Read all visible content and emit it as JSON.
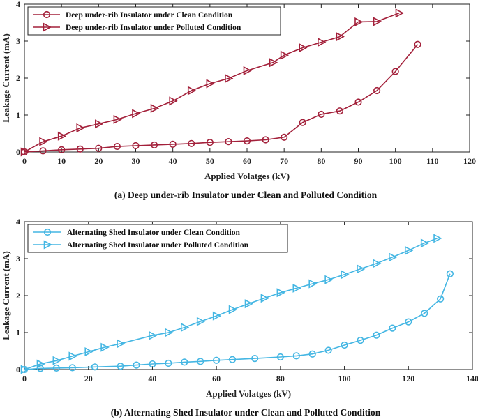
{
  "chart_data": [
    {
      "type": "line",
      "caption": "(a) Deep under-rib Insulator under Clean and Polluted Condition",
      "xlabel": "Applied Volatges (kV)",
      "ylabel": "Leakage Current (mA)",
      "xlim": [
        0,
        120
      ],
      "ylim": [
        0,
        4
      ],
      "xticks": [
        "0",
        "10",
        "20",
        "30",
        "40",
        "50",
        "60",
        "70",
        "80",
        "90",
        "100",
        "110",
        "120"
      ],
      "yticks": [
        "0",
        "1",
        "2",
        "3",
        "4"
      ],
      "color": "#a3203a",
      "legend_position": "top-left",
      "series": [
        {
          "name": "Deep under-rib Insulator under Clean Condition",
          "marker": "circle",
          "x": [
            0,
            5,
            10,
            15,
            20,
            25,
            30,
            35,
            40,
            45,
            50,
            55,
            60,
            65,
            70,
            75,
            80,
            85,
            90,
            95,
            100,
            106
          ],
          "y": [
            0,
            0.03,
            0.06,
            0.08,
            0.1,
            0.15,
            0.17,
            0.19,
            0.21,
            0.23,
            0.26,
            0.28,
            0.3,
            0.33,
            0.4,
            0.8,
            1.02,
            1.11,
            1.35,
            1.66,
            2.18,
            2.91
          ]
        },
        {
          "name": "Deep under-rib Insulator under Polluted Condition",
          "marker": "triangle-right",
          "x": [
            0,
            5,
            10,
            15,
            20,
            25,
            30,
            35,
            40,
            45,
            50,
            55,
            60,
            67,
            70,
            75,
            80,
            85,
            90,
            95,
            101
          ],
          "y": [
            0,
            0.28,
            0.43,
            0.65,
            0.76,
            0.88,
            1.04,
            1.18,
            1.38,
            1.66,
            1.85,
            1.99,
            2.2,
            2.42,
            2.62,
            2.82,
            2.97,
            3.12,
            3.52,
            3.53,
            3.76
          ]
        }
      ]
    },
    {
      "type": "line",
      "caption": "(b) Alternating Shed Insulator under Clean and Polluted Condition",
      "xlabel": "Applied Volatges (kV)",
      "ylabel": "Leakage Current (mA)",
      "xlim": [
        0,
        140
      ],
      "ylim": [
        0,
        4
      ],
      "xticks": [
        "0",
        "20",
        "40",
        "60",
        "80",
        "100",
        "120",
        "140"
      ],
      "yticks": [
        "0",
        "1",
        "2",
        "3",
        "4"
      ],
      "color": "#44b6e3",
      "legend_position": "top-left",
      "series": [
        {
          "name": "Alternating Shed Insulator under Clean Condition",
          "marker": "circle",
          "x": [
            0,
            5,
            10,
            15,
            22,
            30,
            35,
            40,
            45,
            50,
            55,
            60,
            65,
            72,
            80,
            85,
            90,
            95,
            100,
            105,
            110,
            115,
            120,
            125,
            130,
            133
          ],
          "y": [
            0,
            0.03,
            0.04,
            0.05,
            0.07,
            0.09,
            0.12,
            0.15,
            0.17,
            0.2,
            0.22,
            0.25,
            0.27,
            0.3,
            0.34,
            0.37,
            0.42,
            0.52,
            0.66,
            0.79,
            0.93,
            1.12,
            1.29,
            1.52,
            1.91,
            2.59
          ]
        },
        {
          "name": "Alternating Shed Insulator under Polluted Condition",
          "marker": "triangle-right",
          "x": [
            0,
            5,
            10,
            15,
            20,
            25,
            30,
            40,
            45,
            50,
            55,
            60,
            65,
            70,
            75,
            80,
            85,
            90,
            95,
            100,
            105,
            110,
            115,
            120,
            125,
            129
          ],
          "y": [
            0,
            0.15,
            0.24,
            0.36,
            0.48,
            0.6,
            0.7,
            0.92,
            1.0,
            1.14,
            1.3,
            1.45,
            1.62,
            1.78,
            1.93,
            2.08,
            2.2,
            2.32,
            2.43,
            2.57,
            2.72,
            2.87,
            3.04,
            3.22,
            3.42,
            3.55
          ]
        }
      ]
    }
  ]
}
